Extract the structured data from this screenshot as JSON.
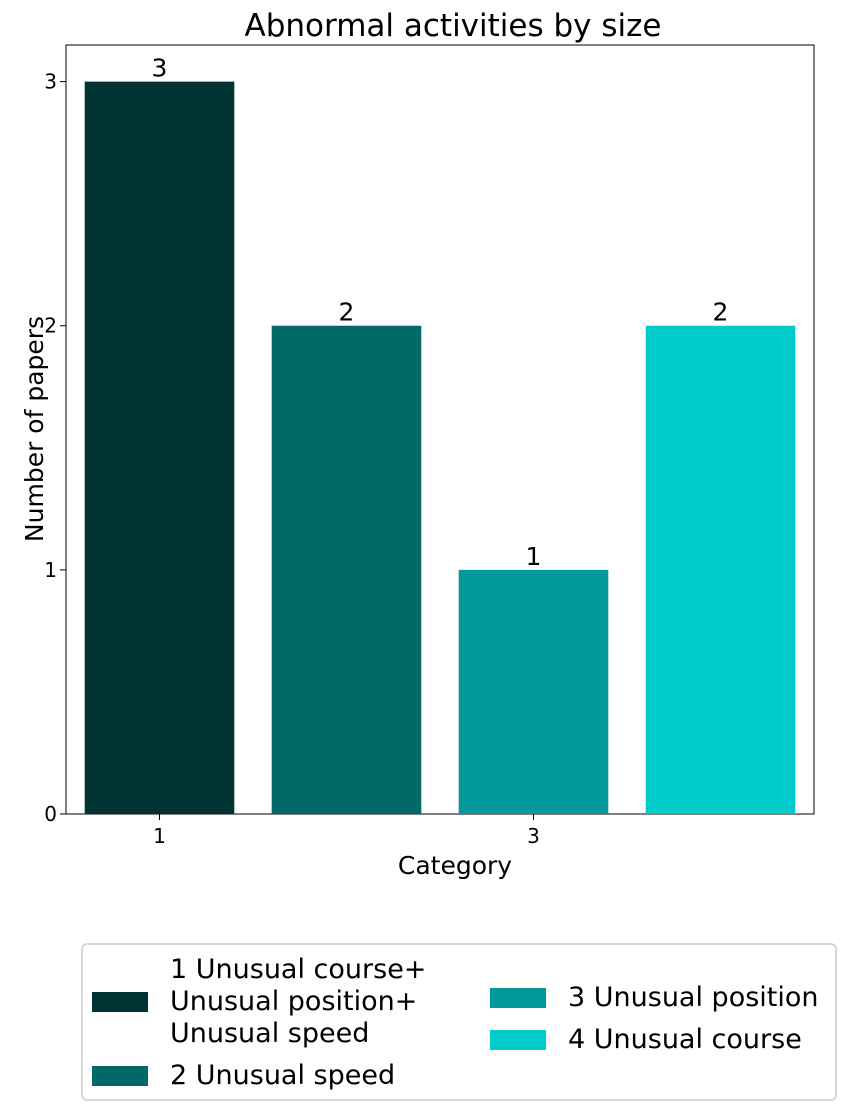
{
  "chart_data": {
    "type": "bar",
    "title": "Abnormal activities by size",
    "xlabel": "Category",
    "ylabel": "Number of papers",
    "categories": [
      "1",
      "2",
      "3",
      "4"
    ],
    "values": [
      3,
      2,
      1,
      2
    ],
    "data_labels": [
      "3",
      "2",
      "1",
      "2"
    ],
    "colors": [
      "#013334",
      "#016967",
      "#019999",
      "#00cccb"
    ],
    "ylim": [
      0,
      3.15
    ],
    "yticks": [
      {
        "value": 0,
        "label": "0"
      },
      {
        "value": 1,
        "label": "1"
      },
      {
        "value": 2,
        "label": "2"
      },
      {
        "value": 3,
        "label": "3"
      }
    ],
    "xticks": [
      {
        "value": 1,
        "label": "1"
      },
      {
        "value": 3,
        "label": "3"
      }
    ],
    "grid": false,
    "legend": {
      "placement": "bottom, below plot",
      "entries": [
        {
          "lines": [
            "1 Unusual course+",
            "Unusual position+",
            "Unusual speed"
          ],
          "color": "#013334"
        },
        {
          "lines": [
            "2 Unusual speed"
          ],
          "color": "#016967"
        },
        {
          "lines": [
            "3 Unusual position"
          ],
          "color": "#019999"
        },
        {
          "lines": [
            "4 Unusual course"
          ],
          "color": "#00cccb"
        }
      ]
    }
  }
}
